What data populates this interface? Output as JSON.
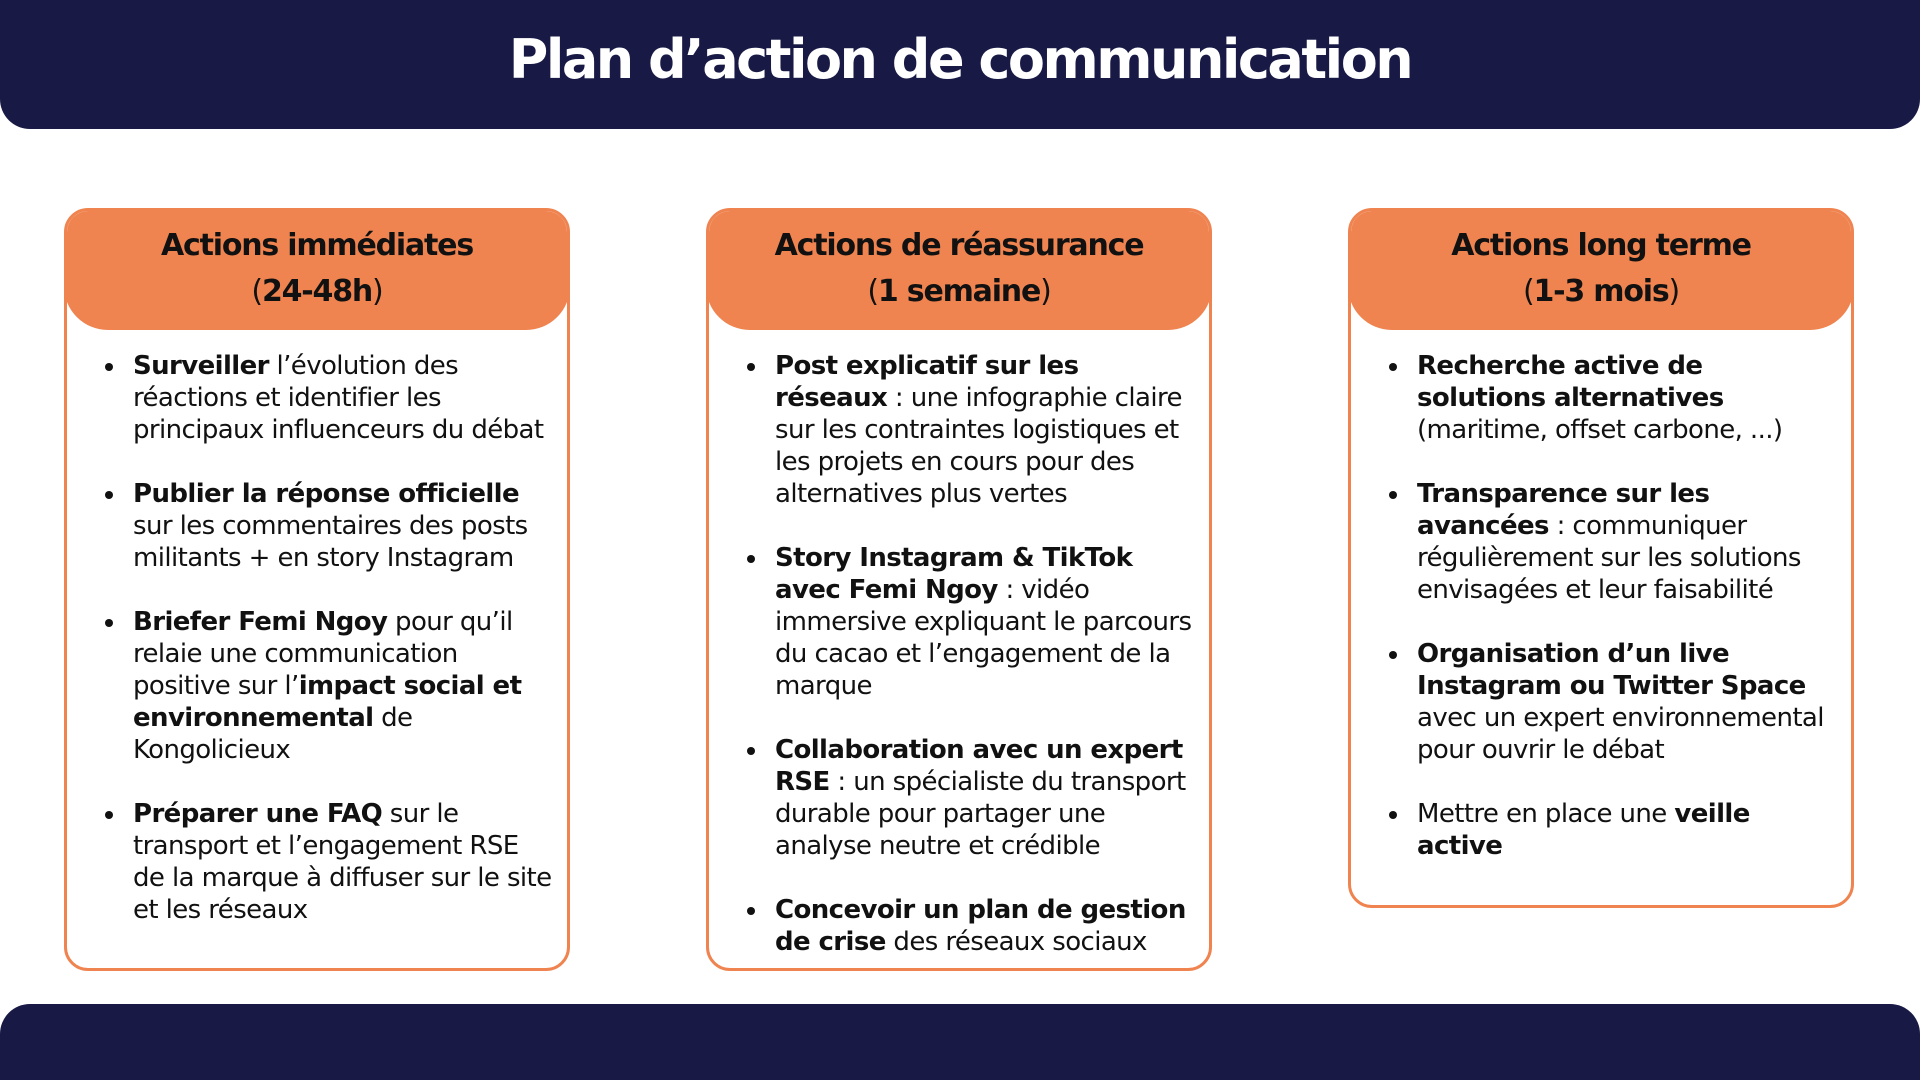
{
  "title": "Plan d’action de communication",
  "colors": {
    "navy": "#181a45",
    "orange": "#ef8450",
    "text": "#111111"
  },
  "columns": [
    {
      "title": "Actions immédiates",
      "paren_open": "(",
      "duration": "24-48h",
      "paren_close": ")",
      "items": [
        {
          "parts": [
            {
              "text": "Surveiller",
              "bold": true
            },
            {
              "text": " l’évolution des réactions et identifier les principaux influenceurs du débat",
              "bold": false
            }
          ]
        },
        {
          "parts": [
            {
              "text": "Publier la réponse officielle",
              "bold": true
            },
            {
              "text": " sur les commentaires des posts militants + en story Instagram",
              "bold": false
            }
          ]
        },
        {
          "parts": [
            {
              "text": "Briefer Femi Ngoy",
              "bold": true
            },
            {
              "text": " pour qu’il relaie une communication positive sur l’",
              "bold": false
            },
            {
              "text": "impact social et environnemental",
              "bold": true
            },
            {
              "text": " de Kongolicieux",
              "bold": false
            }
          ]
        },
        {
          "parts": [
            {
              "text": "Préparer une FAQ",
              "bold": true
            },
            {
              "text": " sur le transport et l’engagement RSE de la marque à diffuser sur le site et les réseaux",
              "bold": false
            }
          ]
        }
      ]
    },
    {
      "title": "Actions de réassurance",
      "paren_open": "(",
      "duration": "1 semaine",
      "paren_close": ")",
      "items": [
        {
          "parts": [
            {
              "text": "Post explicatif sur les réseaux",
              "bold": true
            },
            {
              "text": " : une infographie claire sur les contraintes logistiques et les projets en cours pour des alternatives plus vertes",
              "bold": false
            }
          ]
        },
        {
          "parts": [
            {
              "text": "Story Instagram & TikTok avec Femi Ngoy",
              "bold": true
            },
            {
              "text": " : vidéo immersive expliquant le parcours du cacao et l’engagement de la marque",
              "bold": false
            }
          ]
        },
        {
          "parts": [
            {
              "text": "Collaboration avec un expert RSE",
              "bold": true
            },
            {
              "text": " : un spécialiste du transport durable pour partager une analyse neutre et crédible",
              "bold": false
            }
          ]
        },
        {
          "parts": [
            {
              "text": "Concevoir un plan de gestion de crise",
              "bold": true
            },
            {
              "text": " des réseaux sociaux",
              "bold": false
            }
          ]
        }
      ]
    },
    {
      "title": "Actions long terme",
      "paren_open": "(",
      "duration": "1-3 mois",
      "paren_close": ")",
      "items": [
        {
          "parts": [
            {
              "text": "Recherche active de solutions alternatives",
              "bold": true
            },
            {
              "text": " (maritime, offset carbone, ...)",
              "bold": false
            }
          ]
        },
        {
          "parts": [
            {
              "text": "Transparence sur les avancées",
              "bold": true
            },
            {
              "text": " : communiquer régulièrement sur les solutions envisagées et leur faisabilité",
              "bold": false
            }
          ]
        },
        {
          "parts": [
            {
              "text": "Organisation d’un live Instagram ou Twitter Space",
              "bold": true
            },
            {
              "text": " avec un expert environnemental pour ouvrir le débat",
              "bold": false
            }
          ]
        },
        {
          "parts": [
            {
              "text": "Mettre en place une ",
              "bold": false
            },
            {
              "text": "veille active",
              "bold": true
            }
          ]
        }
      ]
    }
  ]
}
